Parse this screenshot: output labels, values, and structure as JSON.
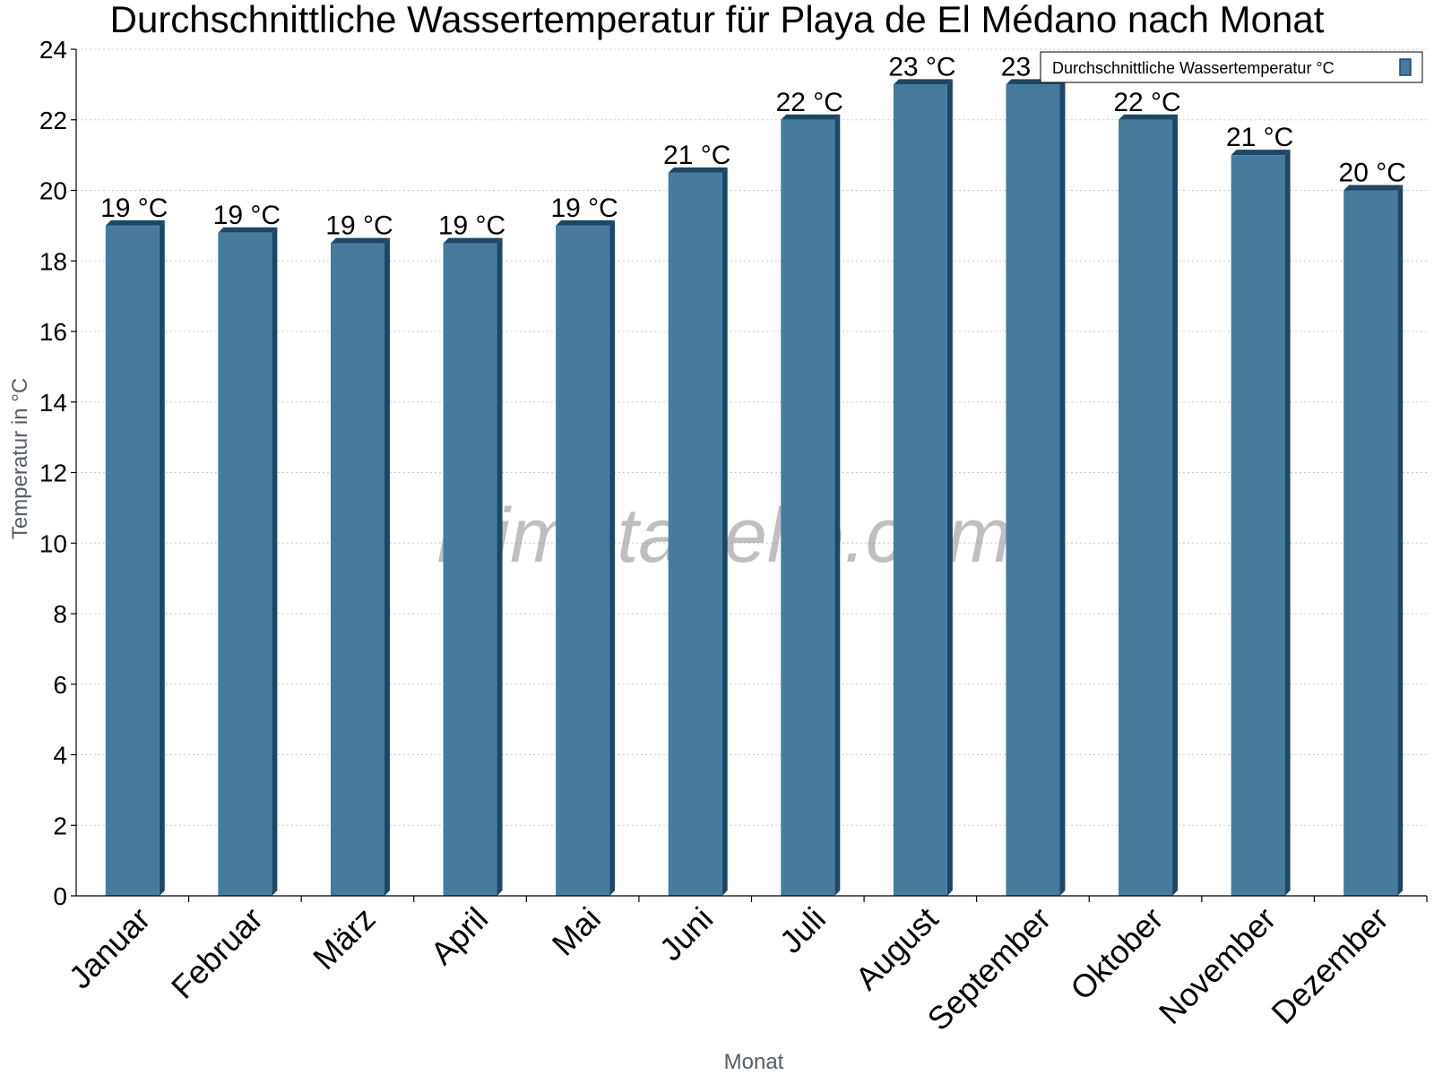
{
  "chart_data": {
    "type": "bar",
    "title": "Durchschnittliche Wassertemperatur für Playa de El Médano nach Monat",
    "xlabel": "Monat",
    "ylabel": "Temperatur in °C",
    "ylim": [
      0,
      24
    ],
    "yticks": [
      0,
      2,
      4,
      6,
      8,
      10,
      12,
      14,
      16,
      18,
      20,
      22,
      24
    ],
    "grid": true,
    "legend_position": "top-right",
    "categories": [
      "Januar",
      "Februar",
      "März",
      "April",
      "Mai",
      "Juni",
      "Juli",
      "August",
      "September",
      "Oktober",
      "November",
      "Dezember"
    ],
    "series": [
      {
        "name": "Durchschnittliche Wassertemperatur °C",
        "values": [
          19.0,
          18.8,
          18.5,
          18.5,
          19.0,
          20.5,
          22.0,
          23.0,
          23.0,
          22.0,
          21.0,
          20.0
        ],
        "labels": [
          "19 °C",
          "19 °C",
          "19 °C",
          "19 °C",
          "19 °C",
          "21 °C",
          "22 °C",
          "23 °C",
          "23 °C",
          "22 °C",
          "21 °C",
          "20 °C"
        ]
      }
    ],
    "colors": {
      "bar_face": "#467b9e",
      "bar_side": "#1d4766",
      "bar_top": "#1d4766"
    },
    "watermark": "klimatabelle.com"
  }
}
